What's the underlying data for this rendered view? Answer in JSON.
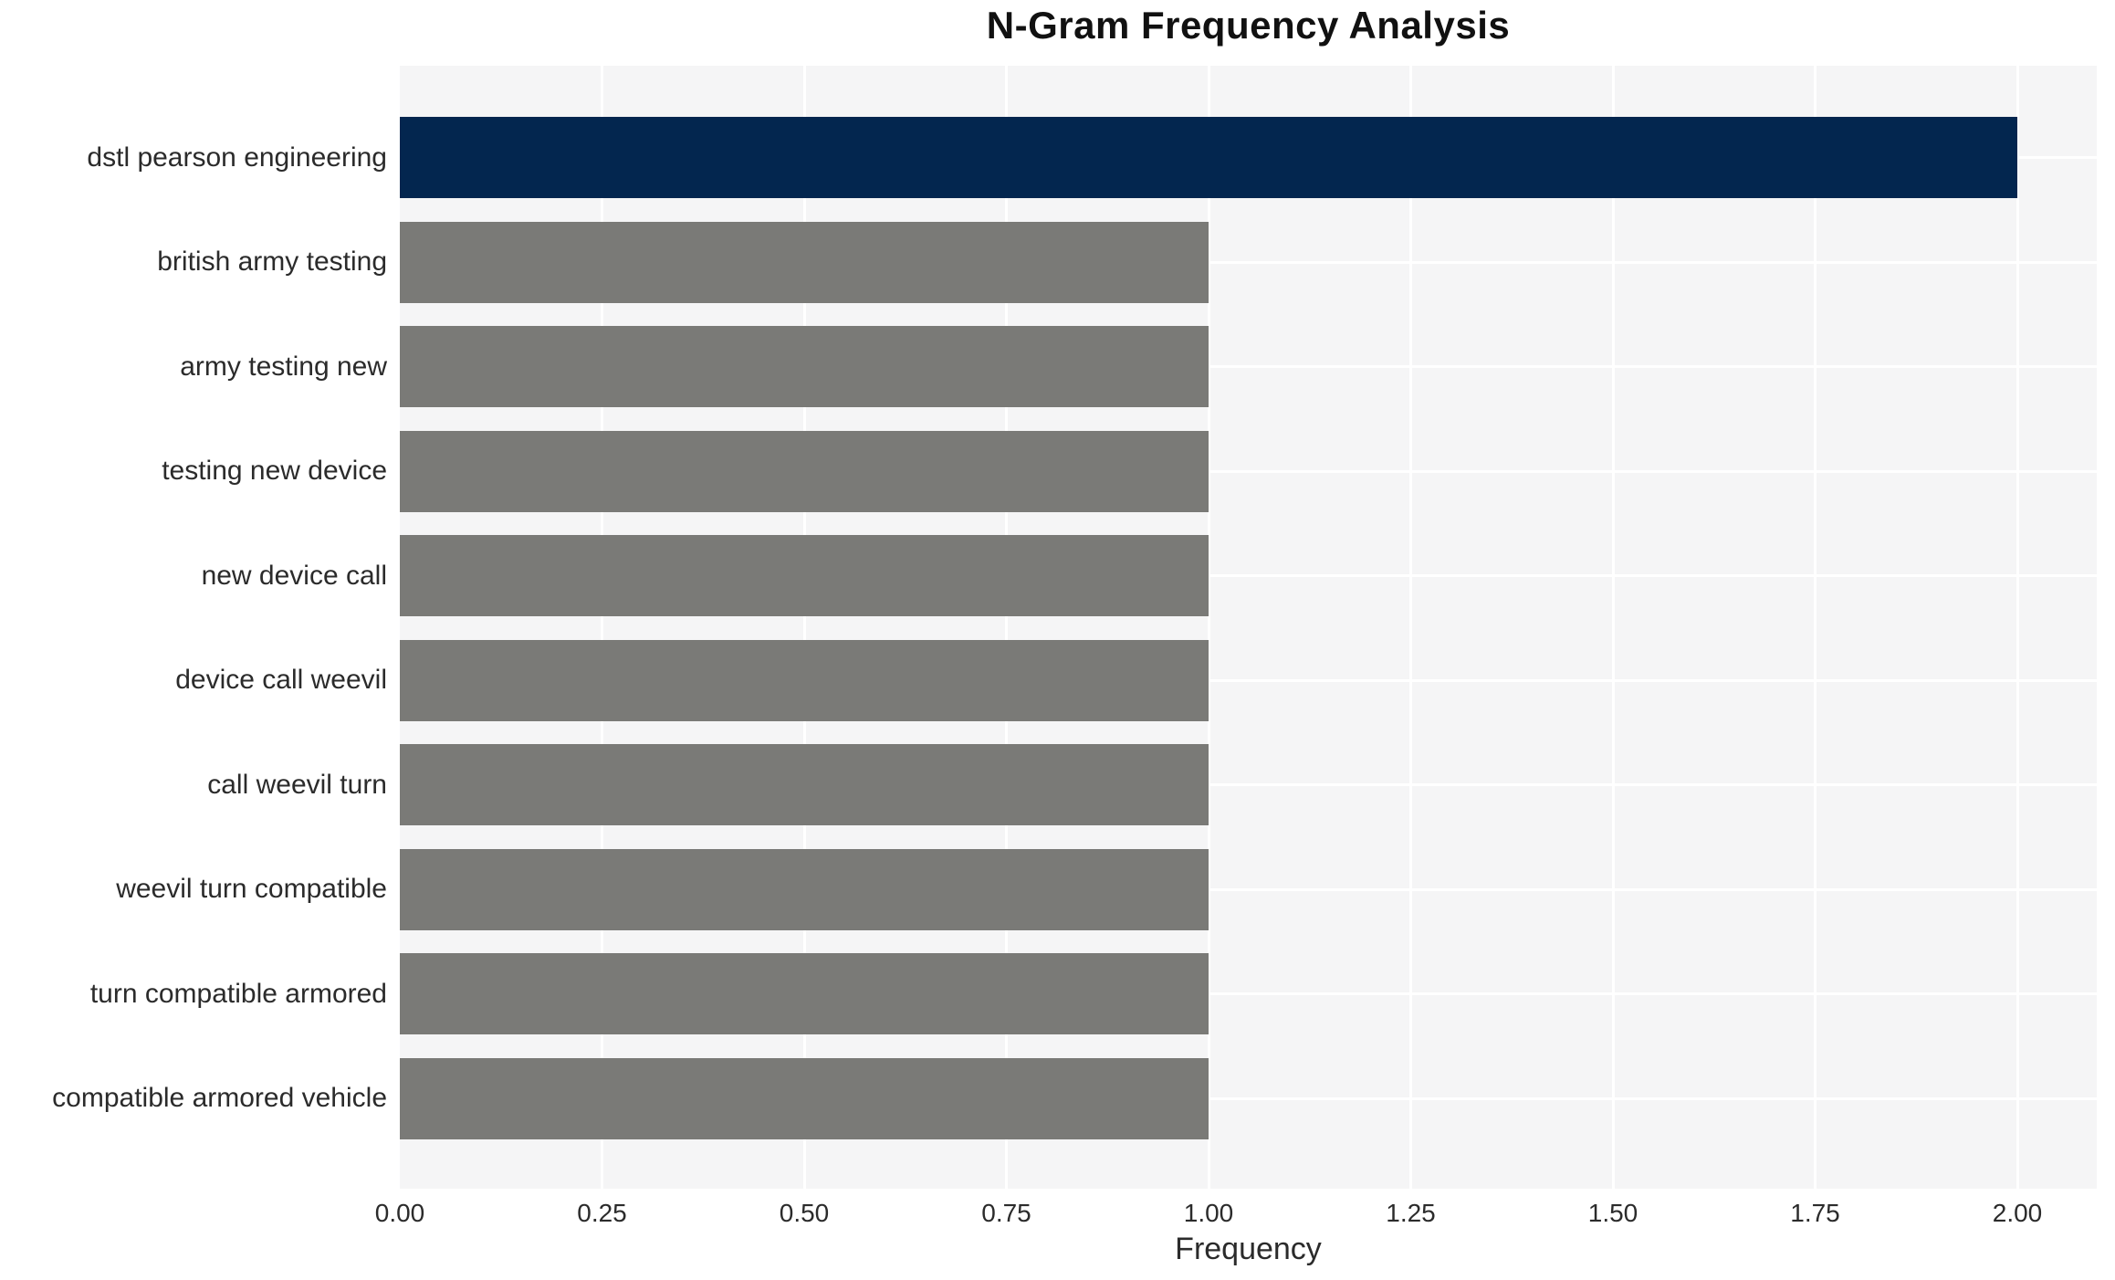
{
  "title": "N-Gram Frequency Analysis",
  "chart_data": {
    "type": "bar",
    "orientation": "horizontal",
    "title": "N-Gram Frequency Analysis",
    "xlabel": "Frequency",
    "ylabel": "",
    "categories": [
      "dstl pearson engineering",
      "british army testing",
      "army testing new",
      "testing new device",
      "new device call",
      "device call weevil",
      "call weevil turn",
      "weevil turn compatible",
      "turn compatible armored",
      "compatible armored vehicle"
    ],
    "values": [
      2,
      1,
      1,
      1,
      1,
      1,
      1,
      1,
      1,
      1
    ],
    "bar_colors": [
      "#03264f",
      "#7a7a77",
      "#7a7a77",
      "#7a7a77",
      "#7a7a77",
      "#7a7a77",
      "#7a7a77",
      "#7a7a77",
      "#7a7a77",
      "#7a7a77"
    ],
    "highlight_color": "#03264f",
    "base_color": "#7a7a77",
    "xlim": [
      0,
      2.1
    ],
    "xticks": [
      0,
      0.25,
      0.5,
      0.75,
      1.0,
      1.25,
      1.5,
      1.75,
      2.0
    ],
    "xtick_labels": [
      "0.00",
      "0.25",
      "0.50",
      "0.75",
      "1.00",
      "1.25",
      "1.50",
      "1.75",
      "2.00"
    ],
    "grid": true,
    "legend": false,
    "plot_bg_color": "#f5f5f6",
    "grid_color": "#ffffff",
    "text_color": "#2b2b2b"
  }
}
